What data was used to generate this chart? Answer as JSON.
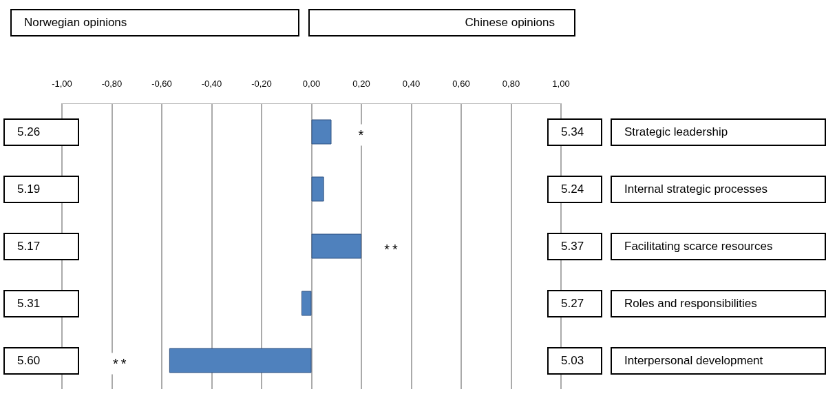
{
  "chart_data": {
    "type": "bar",
    "orientation": "horizontal",
    "categories": [
      "Strategic leadership",
      "Internal strategic processes",
      "Facilitating scarce resources",
      "Roles and responsibilities",
      "Interpersonal development"
    ],
    "values": [
      0.08,
      0.05,
      0.2,
      -0.04,
      -0.57
    ],
    "color": "#4f81bd",
    "xlim": [
      -1,
      1
    ],
    "xticks": [
      {
        "value": -1,
        "label": "-1,00"
      },
      {
        "value": -0.8,
        "label": "-0,80"
      },
      {
        "value": -0.6,
        "label": "-0,60"
      },
      {
        "value": -0.4,
        "label": "-0,40"
      },
      {
        "value": -0.2,
        "label": "-0,20"
      },
      {
        "value": 0,
        "label": "0,00"
      },
      {
        "value": 0.2,
        "label": "0,20"
      },
      {
        "value": 0.4,
        "label": "0,40"
      },
      {
        "value": 0.6,
        "label": "0,60"
      },
      {
        "value": 0.8,
        "label": "0,80"
      },
      {
        "value": 1,
        "label": "1,00"
      }
    ],
    "grid": "x",
    "annotations": [
      "Norwegian opinions",
      "Chinese opinions",
      "5.26",
      "5.34",
      "5.19",
      "5.24",
      "5.17",
      "5.37",
      "5.31",
      "5.27",
      "5.60",
      "5.03",
      {
        "text": "*",
        "x": 0.08,
        "y": "Strategic leadership"
      },
      {
        "text": "**",
        "x": 0.2,
        "y": "Facilitating scarce resources"
      },
      {
        "text": "**",
        "x": -0.57,
        "y": "Interpersonal development"
      }
    ]
  }
}
